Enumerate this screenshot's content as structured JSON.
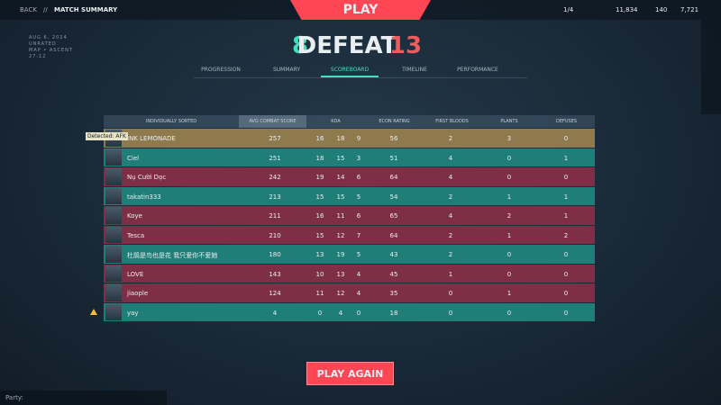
{
  "header": {
    "back": "BACK",
    "separator": "//",
    "title": "MATCH SUMMARY",
    "play": "PLAY",
    "party_count": "1/4",
    "currency": [
      "11,834",
      "140",
      "7,721"
    ]
  },
  "match_info": [
    "AUG 6, 2024",
    "UNRATED",
    "MAP • ASCENT",
    "27:12"
  ],
  "score": {
    "team": "8",
    "result": "DEFEAT",
    "enemy": "13"
  },
  "tabs": {
    "items": [
      "PROGRESSION",
      "SUMMARY",
      "SCOREBOARD",
      "TIMELINE",
      "PERFORMANCE"
    ],
    "active": 2
  },
  "table": {
    "headers": [
      "INDIVIDUALLY SORTED",
      "AVG COMBAT SCORE",
      "KDA",
      "ECON RATING",
      "FIRST BLOODS",
      "PLANTS",
      "DEFUSES"
    ],
    "rows": [
      {
        "name": "INK LEMONADE",
        "acs": 257,
        "k": 16,
        "d": 18,
        "a": 9,
        "econ": 56,
        "fb": 2,
        "plants": 3,
        "defuses": 0,
        "color": "#8f7a4e"
      },
      {
        "name": "Ciel",
        "acs": 251,
        "k": 18,
        "d": 15,
        "a": 3,
        "econ": 51,
        "fb": 4,
        "plants": 0,
        "defuses": 1,
        "color": "#1f7f78"
      },
      {
        "name": "Nụ Cười Dọc",
        "acs": 242,
        "k": 19,
        "d": 14,
        "a": 6,
        "econ": 64,
        "fb": 4,
        "plants": 0,
        "defuses": 0,
        "color": "#7f2f45"
      },
      {
        "name": "takatin333",
        "acs": 213,
        "k": 15,
        "d": 15,
        "a": 5,
        "econ": 54,
        "fb": 2,
        "plants": 1,
        "defuses": 1,
        "color": "#1f7f78"
      },
      {
        "name": "Koye",
        "acs": 211,
        "k": 16,
        "d": 11,
        "a": 6,
        "econ": 65,
        "fb": 4,
        "plants": 2,
        "defuses": 1,
        "color": "#7f2f45"
      },
      {
        "name": "Tesca",
        "acs": 210,
        "k": 15,
        "d": 12,
        "a": 7,
        "econ": 64,
        "fb": 2,
        "plants": 1,
        "defuses": 2,
        "color": "#7f2f45"
      },
      {
        "name": "杜鹃是鸟也是花 我只爱你不爱她",
        "acs": 180,
        "k": 13,
        "d": 19,
        "a": 5,
        "econ": 43,
        "fb": 2,
        "plants": 0,
        "defuses": 0,
        "color": "#1f7f78"
      },
      {
        "name": "LOVE",
        "acs": 143,
        "k": 10,
        "d": 13,
        "a": 4,
        "econ": 45,
        "fb": 1,
        "plants": 0,
        "defuses": 0,
        "color": "#7f2f45"
      },
      {
        "name": "jiaople",
        "acs": 124,
        "k": 11,
        "d": 12,
        "a": 4,
        "econ": 35,
        "fb": 0,
        "plants": 1,
        "defuses": 0,
        "color": "#7f2f45"
      },
      {
        "name": "yay",
        "acs": 4,
        "k": 0,
        "d": 4,
        "a": 0,
        "econ": 18,
        "fb": 0,
        "plants": 0,
        "defuses": 0,
        "color": "#1f7f78"
      }
    ]
  },
  "tooltip": "Detected: AFK",
  "play_again": "PLAY AGAIN",
  "chat": {
    "label": "Party:"
  }
}
